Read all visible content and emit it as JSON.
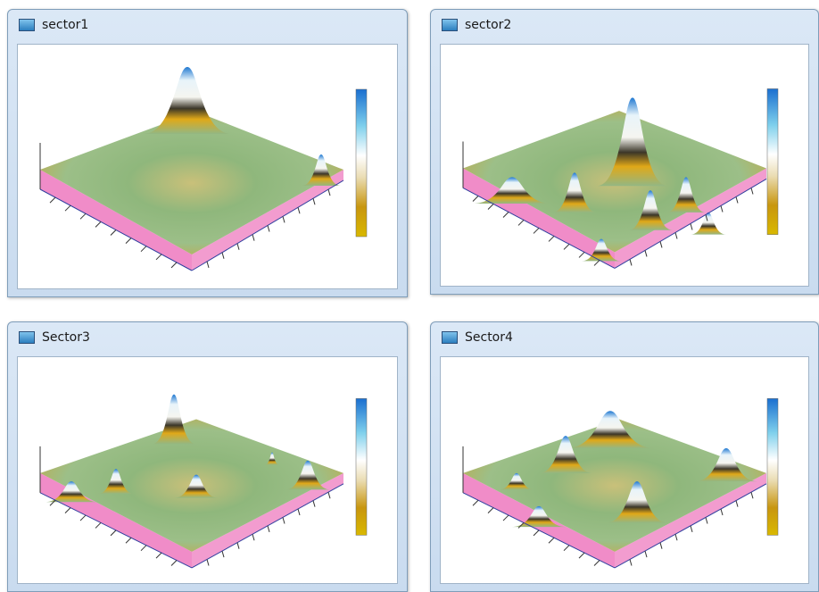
{
  "windows": [
    {
      "title": "sector1"
    },
    {
      "title": "sector2"
    },
    {
      "title": "Sector3"
    },
    {
      "title": "Sector4"
    }
  ]
}
